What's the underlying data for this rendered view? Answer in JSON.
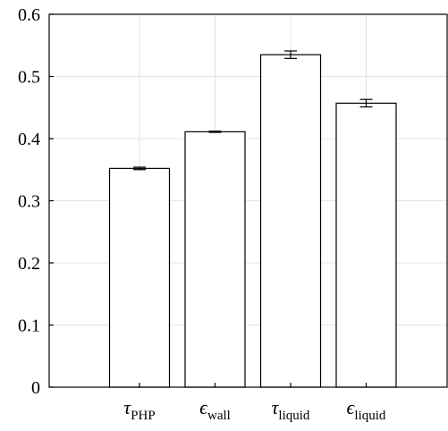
{
  "chart_data": {
    "type": "bar",
    "title": "",
    "xlabel": "",
    "ylabel": "",
    "categories": [
      {
        "symbol": "τ",
        "sub": "PHP"
      },
      {
        "symbol": "ϵ",
        "sub": "wall"
      },
      {
        "symbol": "τ",
        "sub": "liquid"
      },
      {
        "symbol": "ϵ",
        "sub": "liquid"
      }
    ],
    "values": [
      0.352,
      0.411,
      0.535,
      0.457
    ],
    "errors": [
      0.002,
      0.001,
      0.006,
      0.006
    ],
    "ylim": [
      0,
      0.6
    ],
    "yticks": [
      "0",
      "0.1",
      "0.2",
      "0.3",
      "0.4",
      "0.5",
      "0.6"
    ],
    "grid": true
  }
}
